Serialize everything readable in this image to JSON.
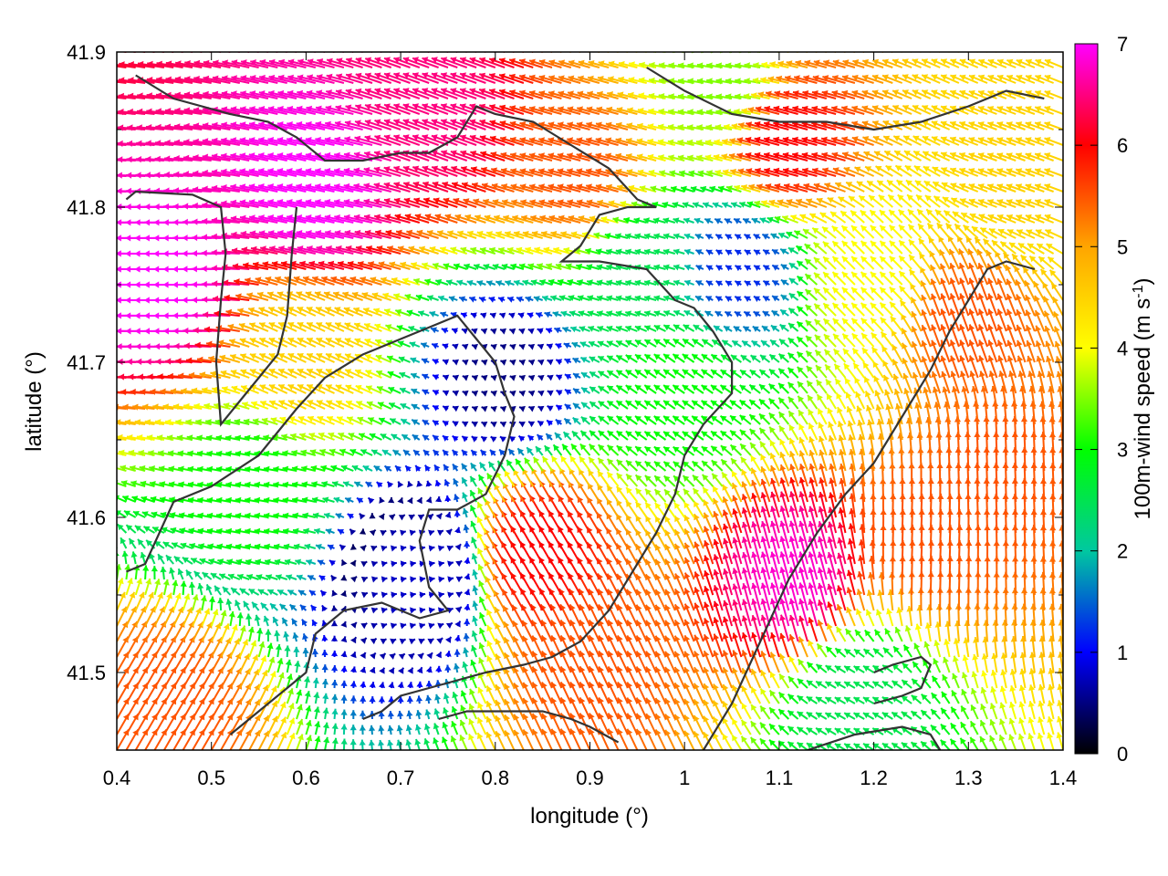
{
  "chart_data": {
    "type": "vector-field",
    "xlabel": "longitude (°)",
    "ylabel": "latitude (°)",
    "xlim": [
      0.4,
      1.4
    ],
    "ylim": [
      41.45,
      41.9
    ],
    "x_ticks": [
      0.4,
      0.5,
      0.6,
      0.7,
      0.8,
      0.9,
      1.0,
      1.1,
      1.2,
      1.3,
      1.4
    ],
    "x_tick_labels": [
      "0.4",
      "0.5",
      "0.6",
      "0.7",
      "0.8",
      "0.9",
      "1",
      "1.1",
      "1.2",
      "1.3",
      "1.4"
    ],
    "y_ticks": [
      41.5,
      41.6,
      41.7,
      41.8,
      41.9
    ],
    "y_tick_labels": [
      "41.5",
      "41.6",
      "41.7",
      "41.8",
      "41.9"
    ],
    "colorbar": {
      "label_main": "100m-wind speed (m s",
      "label_sup": "-1",
      "label_end": ")",
      "range": [
        0,
        7
      ],
      "ticks": [
        0,
        1,
        2,
        3,
        4,
        5,
        6,
        7
      ],
      "tick_labels": [
        "0",
        "1",
        "2",
        "3",
        "4",
        "5",
        "6",
        "7"
      ],
      "palette": [
        "#000000",
        "#0000ff",
        "#00c8a0",
        "#00ff00",
        "#ffff00",
        "#ffa500",
        "#ff0000",
        "#ff00ff"
      ]
    },
    "grid_spacing_deg": [
      0.01,
      0.01
    ],
    "wind_fields": [
      {
        "lon": 0.47,
        "lat": 41.75,
        "speed": 7.0,
        "dir": 180
      },
      {
        "lon": 0.62,
        "lat": 41.81,
        "speed": 7.0,
        "dir": 168
      },
      {
        "lon": 0.75,
        "lat": 41.86,
        "speed": 6.5,
        "dir": 160
      },
      {
        "lon": 0.9,
        "lat": 41.82,
        "speed": 5.5,
        "dir": 165
      },
      {
        "lon": 1.12,
        "lat": 41.84,
        "speed": 6.0,
        "dir": 165
      },
      {
        "lon": 1.3,
        "lat": 41.72,
        "speed": 5.5,
        "dir": 110
      },
      {
        "lon": 1.2,
        "lat": 41.75,
        "speed": 4.0,
        "dir": 135
      },
      {
        "lon": 1.12,
        "lat": 41.55,
        "speed": 6.8,
        "dir": 105
      },
      {
        "lon": 1.26,
        "lat": 41.58,
        "speed": 5.5,
        "dir": 88
      },
      {
        "lon": 1.33,
        "lat": 41.62,
        "speed": 5.5,
        "dir": 92
      },
      {
        "lon": 0.85,
        "lat": 41.57,
        "speed": 6.0,
        "dir": 120
      },
      {
        "lon": 0.9,
        "lat": 41.5,
        "speed": 5.5,
        "dir": 115
      },
      {
        "lon": 0.81,
        "lat": 41.69,
        "speed": 0.5,
        "dir": 160
      },
      {
        "lon": 0.72,
        "lat": 41.56,
        "speed": 0.8,
        "dir": 10
      },
      {
        "lon": 0.55,
        "lat": 41.62,
        "speed": 3.0,
        "dir": 170
      },
      {
        "lon": 0.45,
        "lat": 41.47,
        "speed": 5.5,
        "dir": 60
      },
      {
        "lon": 1.18,
        "lat": 41.48,
        "speed": 2.5,
        "dir": 150
      },
      {
        "lon": 1.0,
        "lat": 41.68,
        "speed": 3.0,
        "dir": 145
      },
      {
        "lon": 0.96,
        "lat": 41.76,
        "speed": 2.5,
        "dir": 165
      },
      {
        "lon": 1.06,
        "lat": 41.76,
        "speed": 1.2,
        "dir": 150
      },
      {
        "lon": 0.6,
        "lat": 41.7,
        "speed": 4.5,
        "dir": 155
      },
      {
        "lon": 1.05,
        "lat": 41.88,
        "speed": 3.5,
        "dir": 170
      },
      {
        "lon": 1.36,
        "lat": 41.82,
        "speed": 4.5,
        "dir": 160
      }
    ],
    "contours": [
      [
        [
          0.42,
          41.885
        ],
        [
          0.46,
          41.87
        ],
        [
          0.52,
          41.86
        ],
        [
          0.56,
          41.855
        ],
        [
          0.59,
          41.845
        ],
        [
          0.62,
          41.83
        ],
        [
          0.66,
          41.83
        ],
        [
          0.7,
          41.835
        ],
        [
          0.73,
          41.835
        ],
        [
          0.76,
          41.845
        ],
        [
          0.78,
          41.865
        ],
        [
          0.8,
          41.86
        ],
        [
          0.84,
          41.855
        ],
        [
          0.88,
          41.84
        ],
        [
          0.92,
          41.825
        ],
        [
          0.95,
          41.805
        ],
        [
          0.97,
          41.8
        ],
        [
          0.94,
          41.8
        ],
        [
          0.91,
          41.795
        ],
        [
          0.89,
          41.775
        ],
        [
          0.87,
          41.765
        ],
        [
          0.91,
          41.765
        ],
        [
          0.96,
          41.76
        ],
        [
          0.99,
          41.74
        ],
        [
          1.01,
          41.735
        ],
        [
          1.03,
          41.72
        ],
        [
          1.05,
          41.7
        ],
        [
          1.05,
          41.68
        ],
        [
          1.02,
          41.66
        ],
        [
          1.0,
          41.64
        ],
        [
          0.99,
          41.615
        ],
        [
          0.97,
          41.59
        ],
        [
          0.95,
          41.57
        ],
        [
          0.92,
          41.54
        ],
        [
          0.89,
          41.52
        ],
        [
          0.86,
          41.51
        ],
        [
          0.83,
          41.505
        ],
        [
          0.79,
          41.5
        ],
        [
          0.76,
          41.495
        ],
        [
          0.73,
          41.49
        ],
        [
          0.7,
          41.485
        ],
        [
          0.68,
          41.475
        ],
        [
          0.66,
          41.47
        ]
      ],
      [
        [
          0.41,
          41.805
        ],
        [
          0.42,
          41.81
        ],
        [
          0.48,
          41.808
        ],
        [
          0.51,
          41.8
        ],
        [
          0.515,
          41.77
        ],
        [
          0.51,
          41.74
        ],
        [
          0.505,
          41.7
        ],
        [
          0.51,
          41.66
        ],
        [
          0.53,
          41.675
        ],
        [
          0.55,
          41.69
        ],
        [
          0.57,
          41.705
        ],
        [
          0.58,
          41.73
        ],
        [
          0.585,
          41.77
        ],
        [
          0.59,
          41.8
        ]
      ],
      [
        [
          0.41,
          41.565
        ],
        [
          0.43,
          41.57
        ],
        [
          0.46,
          41.61
        ],
        [
          0.5,
          41.62
        ],
        [
          0.55,
          41.64
        ],
        [
          0.59,
          41.67
        ],
        [
          0.62,
          41.69
        ],
        [
          0.66,
          41.705
        ],
        [
          0.7,
          41.715
        ],
        [
          0.74,
          41.725
        ],
        [
          0.76,
          41.73
        ],
        [
          0.78,
          41.715
        ],
        [
          0.8,
          41.7
        ],
        [
          0.81,
          41.68
        ],
        [
          0.82,
          41.665
        ],
        [
          0.81,
          41.64
        ],
        [
          0.79,
          41.615
        ],
        [
          0.76,
          41.605
        ],
        [
          0.73,
          41.605
        ],
        [
          0.72,
          41.585
        ],
        [
          0.73,
          41.555
        ],
        [
          0.75,
          41.54
        ],
        [
          0.72,
          41.535
        ],
        [
          0.68,
          41.545
        ],
        [
          0.64,
          41.54
        ],
        [
          0.61,
          41.525
        ],
        [
          0.6,
          41.5
        ],
        [
          0.58,
          41.49
        ],
        [
          0.55,
          41.475
        ],
        [
          0.52,
          41.46
        ]
      ],
      [
        [
          1.02,
          41.45
        ],
        [
          1.05,
          41.48
        ],
        [
          1.08,
          41.52
        ],
        [
          1.11,
          41.56
        ],
        [
          1.14,
          41.59
        ],
        [
          1.17,
          41.615
        ],
        [
          1.2,
          41.635
        ],
        [
          1.23,
          41.665
        ],
        [
          1.26,
          41.695
        ],
        [
          1.28,
          41.72
        ],
        [
          1.3,
          41.74
        ],
        [
          1.32,
          41.76
        ],
        [
          1.34,
          41.765
        ],
        [
          1.37,
          41.76
        ]
      ],
      [
        [
          1.2,
          41.48
        ],
        [
          1.23,
          41.485
        ],
        [
          1.25,
          41.49
        ],
        [
          1.26,
          41.505
        ],
        [
          1.25,
          41.51
        ],
        [
          1.22,
          41.505
        ],
        [
          1.2,
          41.5
        ]
      ],
      [
        [
          0.96,
          41.89
        ],
        [
          1.0,
          41.875
        ],
        [
          1.05,
          41.86
        ],
        [
          1.1,
          41.855
        ],
        [
          1.15,
          41.855
        ],
        [
          1.2,
          41.85
        ],
        [
          1.25,
          41.855
        ],
        [
          1.3,
          41.865
        ],
        [
          1.34,
          41.875
        ],
        [
          1.38,
          41.87
        ]
      ],
      [
        [
          0.74,
          41.47
        ],
        [
          0.77,
          41.475
        ],
        [
          0.81,
          41.475
        ],
        [
          0.85,
          41.475
        ],
        [
          0.88,
          41.47
        ],
        [
          0.9,
          41.465
        ],
        [
          0.93,
          41.455
        ]
      ],
      [
        [
          1.13,
          41.45
        ],
        [
          1.18,
          41.46
        ],
        [
          1.23,
          41.465
        ],
        [
          1.26,
          41.46
        ],
        [
          1.27,
          41.45
        ]
      ]
    ]
  }
}
